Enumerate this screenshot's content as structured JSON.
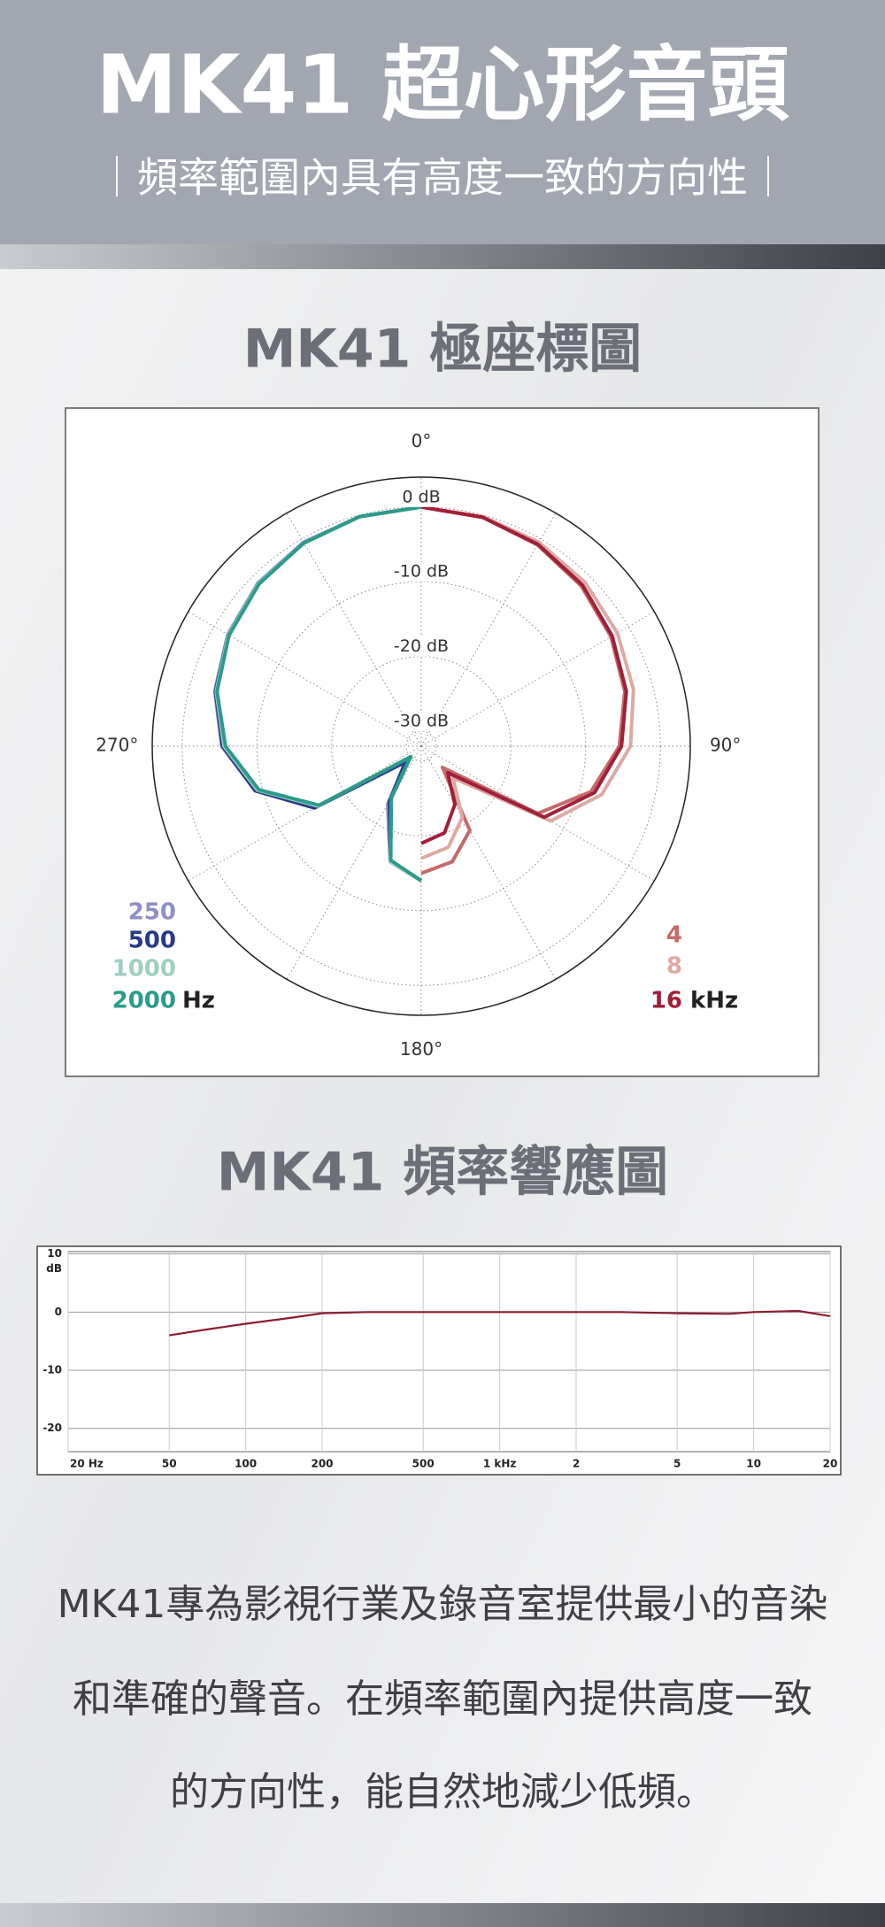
{
  "header": {
    "title": "MK41  超心形音頭",
    "subtitle": "｜頻率範圍內具有高度一致的方向性｜"
  },
  "polar_section_title": "MK41 極座標圖",
  "polar": {
    "type": "polar",
    "rlim": [
      -32,
      4
    ],
    "rticks": [
      {
        "value": 0,
        "label": "0 dB"
      },
      {
        "value": -10,
        "label": "-10 dB"
      },
      {
        "value": -20,
        "label": "-20 dB"
      },
      {
        "value": -30,
        "label": "-30 dB"
      }
    ],
    "angle_ticks": [
      {
        "value": 0,
        "label": "0°"
      },
      {
        "value": 90,
        "label": "90°"
      },
      {
        "value": 180,
        "label": "180°"
      },
      {
        "value": 270,
        "label": "270°"
      }
    ],
    "low": {
      "unit": "Hz",
      "angles": [
        180,
        195,
        210,
        225,
        240,
        255,
        270,
        285,
        300,
        315,
        330,
        345,
        360
      ],
      "series": [
        {
          "name": "250",
          "color": "#8d90c6",
          "values": [
            -14,
            -16,
            -23,
            -29,
            -15.5,
            -9,
            -5.3,
            -3.4,
            -2.1,
            -1.1,
            -0.5,
            -0.2,
            0
          ]
        },
        {
          "name": "500",
          "color": "#283a88",
          "values": [
            -14,
            -16,
            -23.5,
            -29,
            -15.5,
            -9,
            -5.4,
            -3.5,
            -2.2,
            -1.2,
            -0.6,
            -0.2,
            0
          ]
        },
        {
          "name": "1000",
          "color": "#9fd0bb",
          "values": [
            -14,
            -16,
            -24,
            -30,
            -16,
            -9.3,
            -5.6,
            -3.6,
            -2.2,
            -1.2,
            -0.6,
            -0.2,
            0
          ]
        },
        {
          "name": "2000",
          "color": "#2a9c89",
          "values": [
            -14,
            -16.2,
            -24,
            -30,
            -16.2,
            -9.5,
            -5.8,
            -3.7,
            -2.3,
            -1.3,
            -0.6,
            -0.2,
            0
          ]
        }
      ]
    },
    "high": {
      "unit": "kHz",
      "angles": [
        0,
        15,
        30,
        45,
        60,
        75,
        90,
        105,
        120,
        135,
        150,
        165,
        180
      ],
      "series": [
        {
          "name": "4",
          "color": "#c46a6a",
          "values": [
            0,
            -0.3,
            -0.9,
            -1.7,
            -2.7,
            -3.8,
            -5.5,
            -8.5,
            -14,
            -28,
            -19,
            -16,
            -15
          ]
        },
        {
          "name": "8",
          "color": "#dcaaa3",
          "values": [
            0,
            -0.2,
            -0.5,
            -1,
            -1.7,
            -2.6,
            -4,
            -7,
            -12,
            -26,
            -21,
            -18,
            -17
          ]
        },
        {
          "name": "16",
          "color": "#a11f38",
          "values": [
            0,
            -0.3,
            -0.8,
            -1.5,
            -2.5,
            -3.6,
            -5.2,
            -8,
            -13,
            -27,
            -23,
            -20,
            -19
          ]
        }
      ]
    }
  },
  "response_section_title": "MK41 頻率響應圖",
  "chart_data": {
    "type": "line",
    "y_label": "dB",
    "log_x": true,
    "xlim": [
      20,
      20000
    ],
    "xticks": [
      {
        "value": 20,
        "label": "20 Hz"
      },
      50,
      100,
      200,
      500,
      {
        "value": 1000,
        "label": "1 kHz"
      },
      {
        "value": 2000,
        "label": "2"
      },
      {
        "value": 5000,
        "label": "5"
      },
      {
        "value": 10000,
        "label": "10"
      },
      {
        "value": 20000,
        "label": "20"
      }
    ],
    "ylim": [
      -24,
      10.4
    ],
    "yticks": [
      -20,
      -10,
      0,
      10
    ],
    "grid": true,
    "x": [
      50,
      70,
      100,
      150,
      200,
      300,
      1000,
      3000,
      5000,
      8000,
      10000,
      15000,
      20000
    ],
    "series": [
      {
        "name": "MK41",
        "color": "#8c1c30",
        "values": [
          -4,
          -3,
          -2,
          -1,
          -0.2,
          0,
          0,
          0,
          -0.2,
          -0.3,
          0,
          0.2,
          -0.7
        ]
      }
    ]
  },
  "description": [
    "MK41專為影視行業及錄音室提供最小的音染",
    "和準確的聲音。在頻率範圍內提供高度一致",
    "的方向性，能自然地減少低頻。"
  ]
}
